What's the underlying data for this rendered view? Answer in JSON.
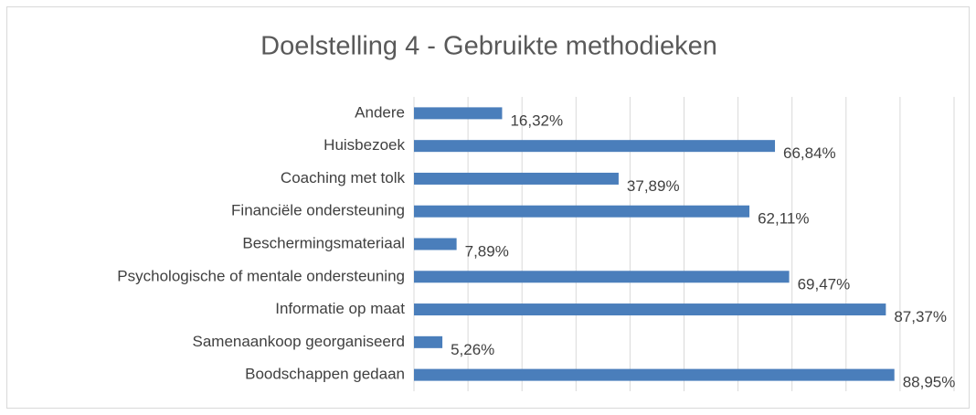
{
  "chart_data": {
    "type": "bar",
    "orientation": "horizontal",
    "title": "Doelstelling 4 - Gebruikte methodieken",
    "categories": [
      "Andere",
      "Huisbezoek",
      "Coaching met tolk",
      "Financiële ondersteuning",
      "Beschermingsmateriaal",
      "Psychologische of mentale ondersteuning",
      "Informatie op maat",
      "Samenaankoop georganiseerd",
      "Boodschappen gedaan"
    ],
    "values": [
      16.32,
      66.84,
      37.89,
      62.11,
      7.89,
      69.47,
      87.37,
      5.26,
      88.95
    ],
    "value_labels": [
      "16,32%",
      "66,84%",
      "37,89%",
      "62,11%",
      "7,89%",
      "69,47%",
      "87,37%",
      "5,26%",
      "88,95%"
    ],
    "color": "#4a7ebb",
    "xlim": [
      0,
      100
    ],
    "xticks": [
      0,
      10,
      20,
      30,
      40,
      50,
      60,
      70,
      80,
      90,
      100
    ],
    "grid": true
  }
}
